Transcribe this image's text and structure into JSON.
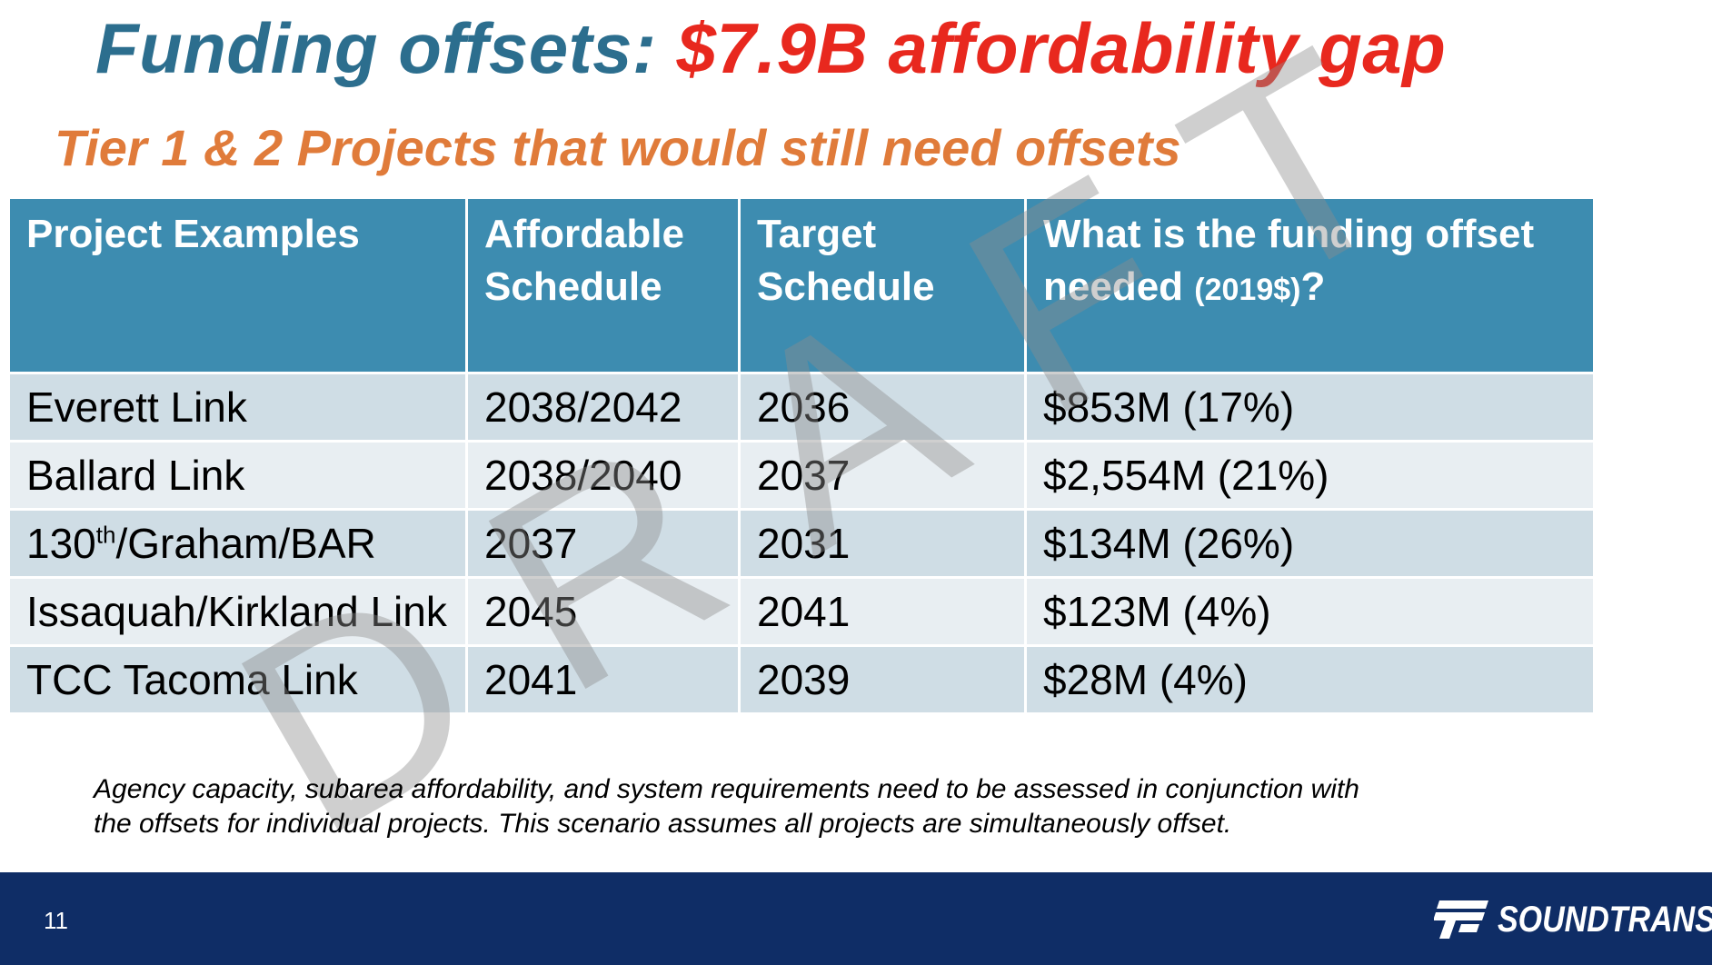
{
  "slide": {
    "title_prefix": "Funding offsets: ",
    "title_accent": "$7.9B affordability gap",
    "subtitle": "Tier 1 & 2 Projects that would still need offsets",
    "watermark": "DRAFT",
    "footnote_line1": "Agency capacity, subarea affordability, and system requirements need to be assessed in conjunction with",
    "footnote_line2": "the offsets for individual projects.  This scenario assumes all projects are simultaneously offset.",
    "page_number": "11",
    "logo_text": "SOUNDTRANSIT"
  },
  "table": {
    "headers": {
      "col1": "Project Examples",
      "col2": "Affordable Schedule",
      "col3": "Target Schedule",
      "col4_main": "What is the funding offset needed ",
      "col4_small": "(2019$)",
      "col4_end": "?"
    },
    "rows": [
      {
        "project": "Everett Link",
        "affordable": "2038/2042",
        "target": "2036",
        "offset": "$853M (17%)"
      },
      {
        "project": "Ballard Link",
        "affordable": "2038/2040",
        "target": "2037",
        "offset": "$2,554M (21%)"
      },
      {
        "project_pre": "130",
        "project_sup": "th",
        "project_post": "/Graham/BAR",
        "affordable": "2037",
        "target": "2031",
        "offset": "$134M (26%)"
      },
      {
        "project": "Issaquah/Kirkland Link",
        "affordable": "2045",
        "target": "2041",
        "offset": "$123M (4%)"
      },
      {
        "project": "TCC Tacoma Link",
        "affordable": "2041",
        "target": "2039",
        "offset": "$28M (4%)"
      }
    ]
  },
  "colors": {
    "title": "#2c6e8e",
    "title_accent": "#e8281e",
    "subtitle": "#e07b3a",
    "header_bg": "#3d8cb0",
    "row_odd": "#cfdde5",
    "row_even": "#e8eef2",
    "footer_bg": "#0f2d66"
  }
}
